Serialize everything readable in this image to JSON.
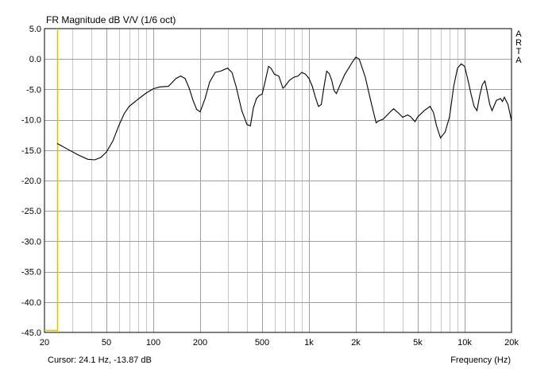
{
  "chart_data": {
    "type": "line",
    "title": "FR Magnitude dB V/V (1/6 oct)",
    "xlabel": "Frequency (Hz)",
    "ylabel": "",
    "x_scale": "log",
    "xlim": [
      20,
      20000
    ],
    "ylim": [
      -45,
      5
    ],
    "x_tick_labels": [
      "20",
      "50",
      "100",
      "200",
      "500",
      "1k",
      "2k",
      "5k",
      "10k",
      "20k"
    ],
    "x_tick_values": [
      20,
      50,
      100,
      200,
      500,
      1000,
      2000,
      5000,
      10000,
      20000
    ],
    "y_tick_labels": [
      "5.0",
      "0.0",
      "-5.0",
      "-10.0",
      "-15.0",
      "-20.0",
      "-25.0",
      "-30.0",
      "-35.0",
      "-40.0",
      "-45.0"
    ],
    "y_tick_values": [
      5,
      0,
      -5,
      -10,
      -15,
      -20,
      -25,
      -30,
      -35,
      -40,
      -45
    ],
    "grid": true,
    "series": [
      {
        "color": "#000000",
        "x": [
          24.1,
          28,
          33,
          38,
          42,
          46,
          50,
          55,
          60,
          65,
          70,
          80,
          90,
          100,
          110,
          125,
          140,
          150,
          160,
          170,
          180,
          190,
          200,
          215,
          230,
          250,
          270,
          300,
          320,
          340,
          370,
          400,
          420,
          440,
          460,
          480,
          500,
          520,
          550,
          570,
          600,
          640,
          680,
          700,
          750,
          800,
          850,
          900,
          950,
          1000,
          1050,
          1100,
          1150,
          1200,
          1250,
          1300,
          1350,
          1400,
          1450,
          1500,
          1600,
          1700,
          1800,
          1900,
          2000,
          2100,
          2200,
          2300,
          2500,
          2700,
          2800,
          3000,
          3300,
          3500,
          3800,
          4000,
          4300,
          4500,
          4800,
          5000,
          5500,
          6000,
          6300,
          6600,
          7000,
          7500,
          8000,
          8500,
          9000,
          9500,
          10000,
          10500,
          11000,
          11500,
          12000,
          12500,
          13000,
          13500,
          14000,
          14500,
          15000,
          16000,
          17000,
          17500,
          18000,
          19000,
          20000
        ],
        "y": [
          -13.9,
          -14.8,
          -15.8,
          -16.5,
          -16.6,
          -16.2,
          -15.3,
          -13.5,
          -11.0,
          -9.0,
          -7.8,
          -6.6,
          -5.6,
          -4.9,
          -4.6,
          -4.5,
          -3.2,
          -2.8,
          -3.2,
          -4.8,
          -6.8,
          -8.3,
          -8.7,
          -6.5,
          -3.8,
          -2.2,
          -2.0,
          -1.5,
          -2.2,
          -4.5,
          -8.5,
          -10.8,
          -11.0,
          -8.0,
          -6.5,
          -6.0,
          -5.8,
          -4.0,
          -1.2,
          -1.5,
          -2.5,
          -2.8,
          -4.8,
          -4.5,
          -3.5,
          -3.0,
          -2.8,
          -2.2,
          -2.5,
          -3.2,
          -4.5,
          -6.3,
          -7.8,
          -7.5,
          -4.5,
          -2.0,
          -2.4,
          -3.5,
          -5.2,
          -5.7,
          -4.0,
          -2.5,
          -1.5,
          -0.5,
          0.3,
          0.0,
          -1.5,
          -3.0,
          -7.0,
          -10.5,
          -10.2,
          -9.9,
          -8.8,
          -8.2,
          -9.0,
          -9.6,
          -9.2,
          -9.5,
          -10.3,
          -9.5,
          -8.5,
          -7.8,
          -8.8,
          -11.0,
          -13.0,
          -12.0,
          -9.5,
          -4.5,
          -1.5,
          -0.8,
          -1.2,
          -3.5,
          -5.8,
          -7.8,
          -8.5,
          -6.0,
          -4.2,
          -3.6,
          -5.5,
          -7.5,
          -8.5,
          -6.8,
          -6.5,
          -7.0,
          -6.3,
          -7.5,
          -10.2
        ]
      }
    ],
    "cursor": {
      "frequency": 24.1,
      "magnitude": -13.87,
      "color": "#d4c21e"
    },
    "cursor_readout": "Cursor: 24.1 Hz, -13.87 dB",
    "brand_letters": [
      "A",
      "R",
      "T",
      "A"
    ]
  }
}
